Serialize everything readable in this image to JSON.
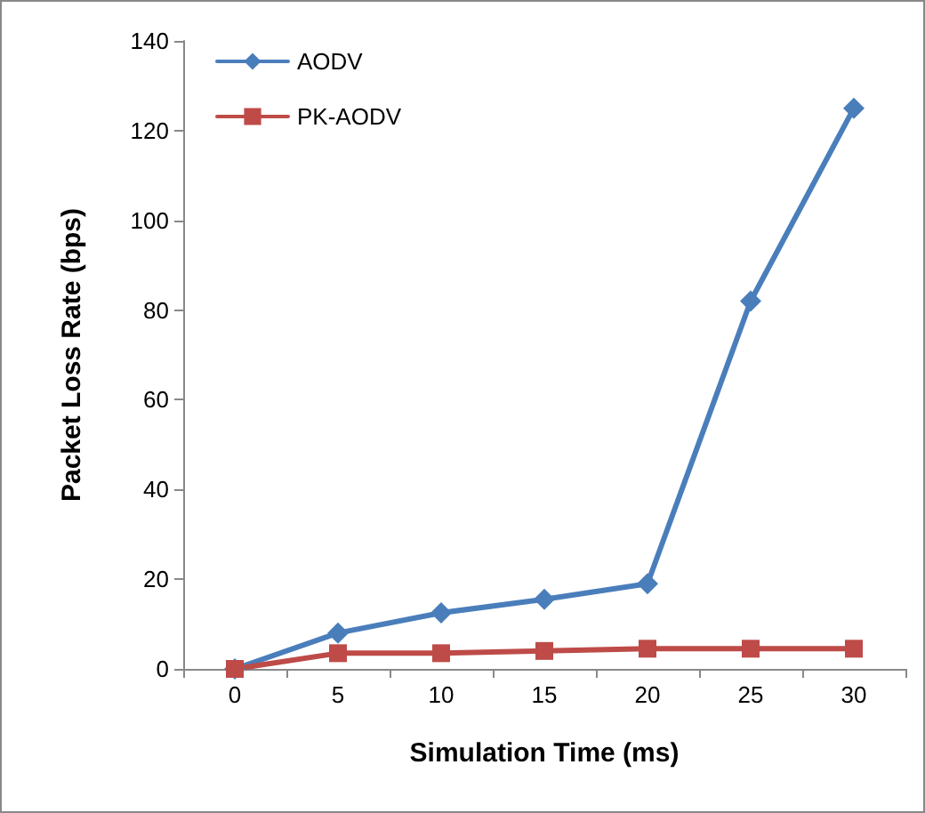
{
  "chart_data": {
    "type": "line",
    "xlabel": "Simulation Time (ms)",
    "ylabel": "Packet Loss Rate (bps)",
    "categories": [
      "0",
      "5",
      "10",
      "15",
      "20",
      "25",
      "30"
    ],
    "series": [
      {
        "name": "AODV",
        "color": "#4a7ebb",
        "marker": "diamond",
        "values": [
          0,
          8,
          12.5,
          15.5,
          19,
          82,
          125
        ]
      },
      {
        "name": "PK-AODV",
        "color": "#be4b48",
        "marker": "square",
        "values": [
          0,
          3.5,
          3.5,
          4,
          4.5,
          4.5,
          4.5
        ]
      }
    ],
    "ylim": [
      0,
      140
    ],
    "yticks": [
      0,
      20,
      40,
      60,
      80,
      100,
      120,
      140
    ],
    "grid": false,
    "legend": "top left"
  }
}
